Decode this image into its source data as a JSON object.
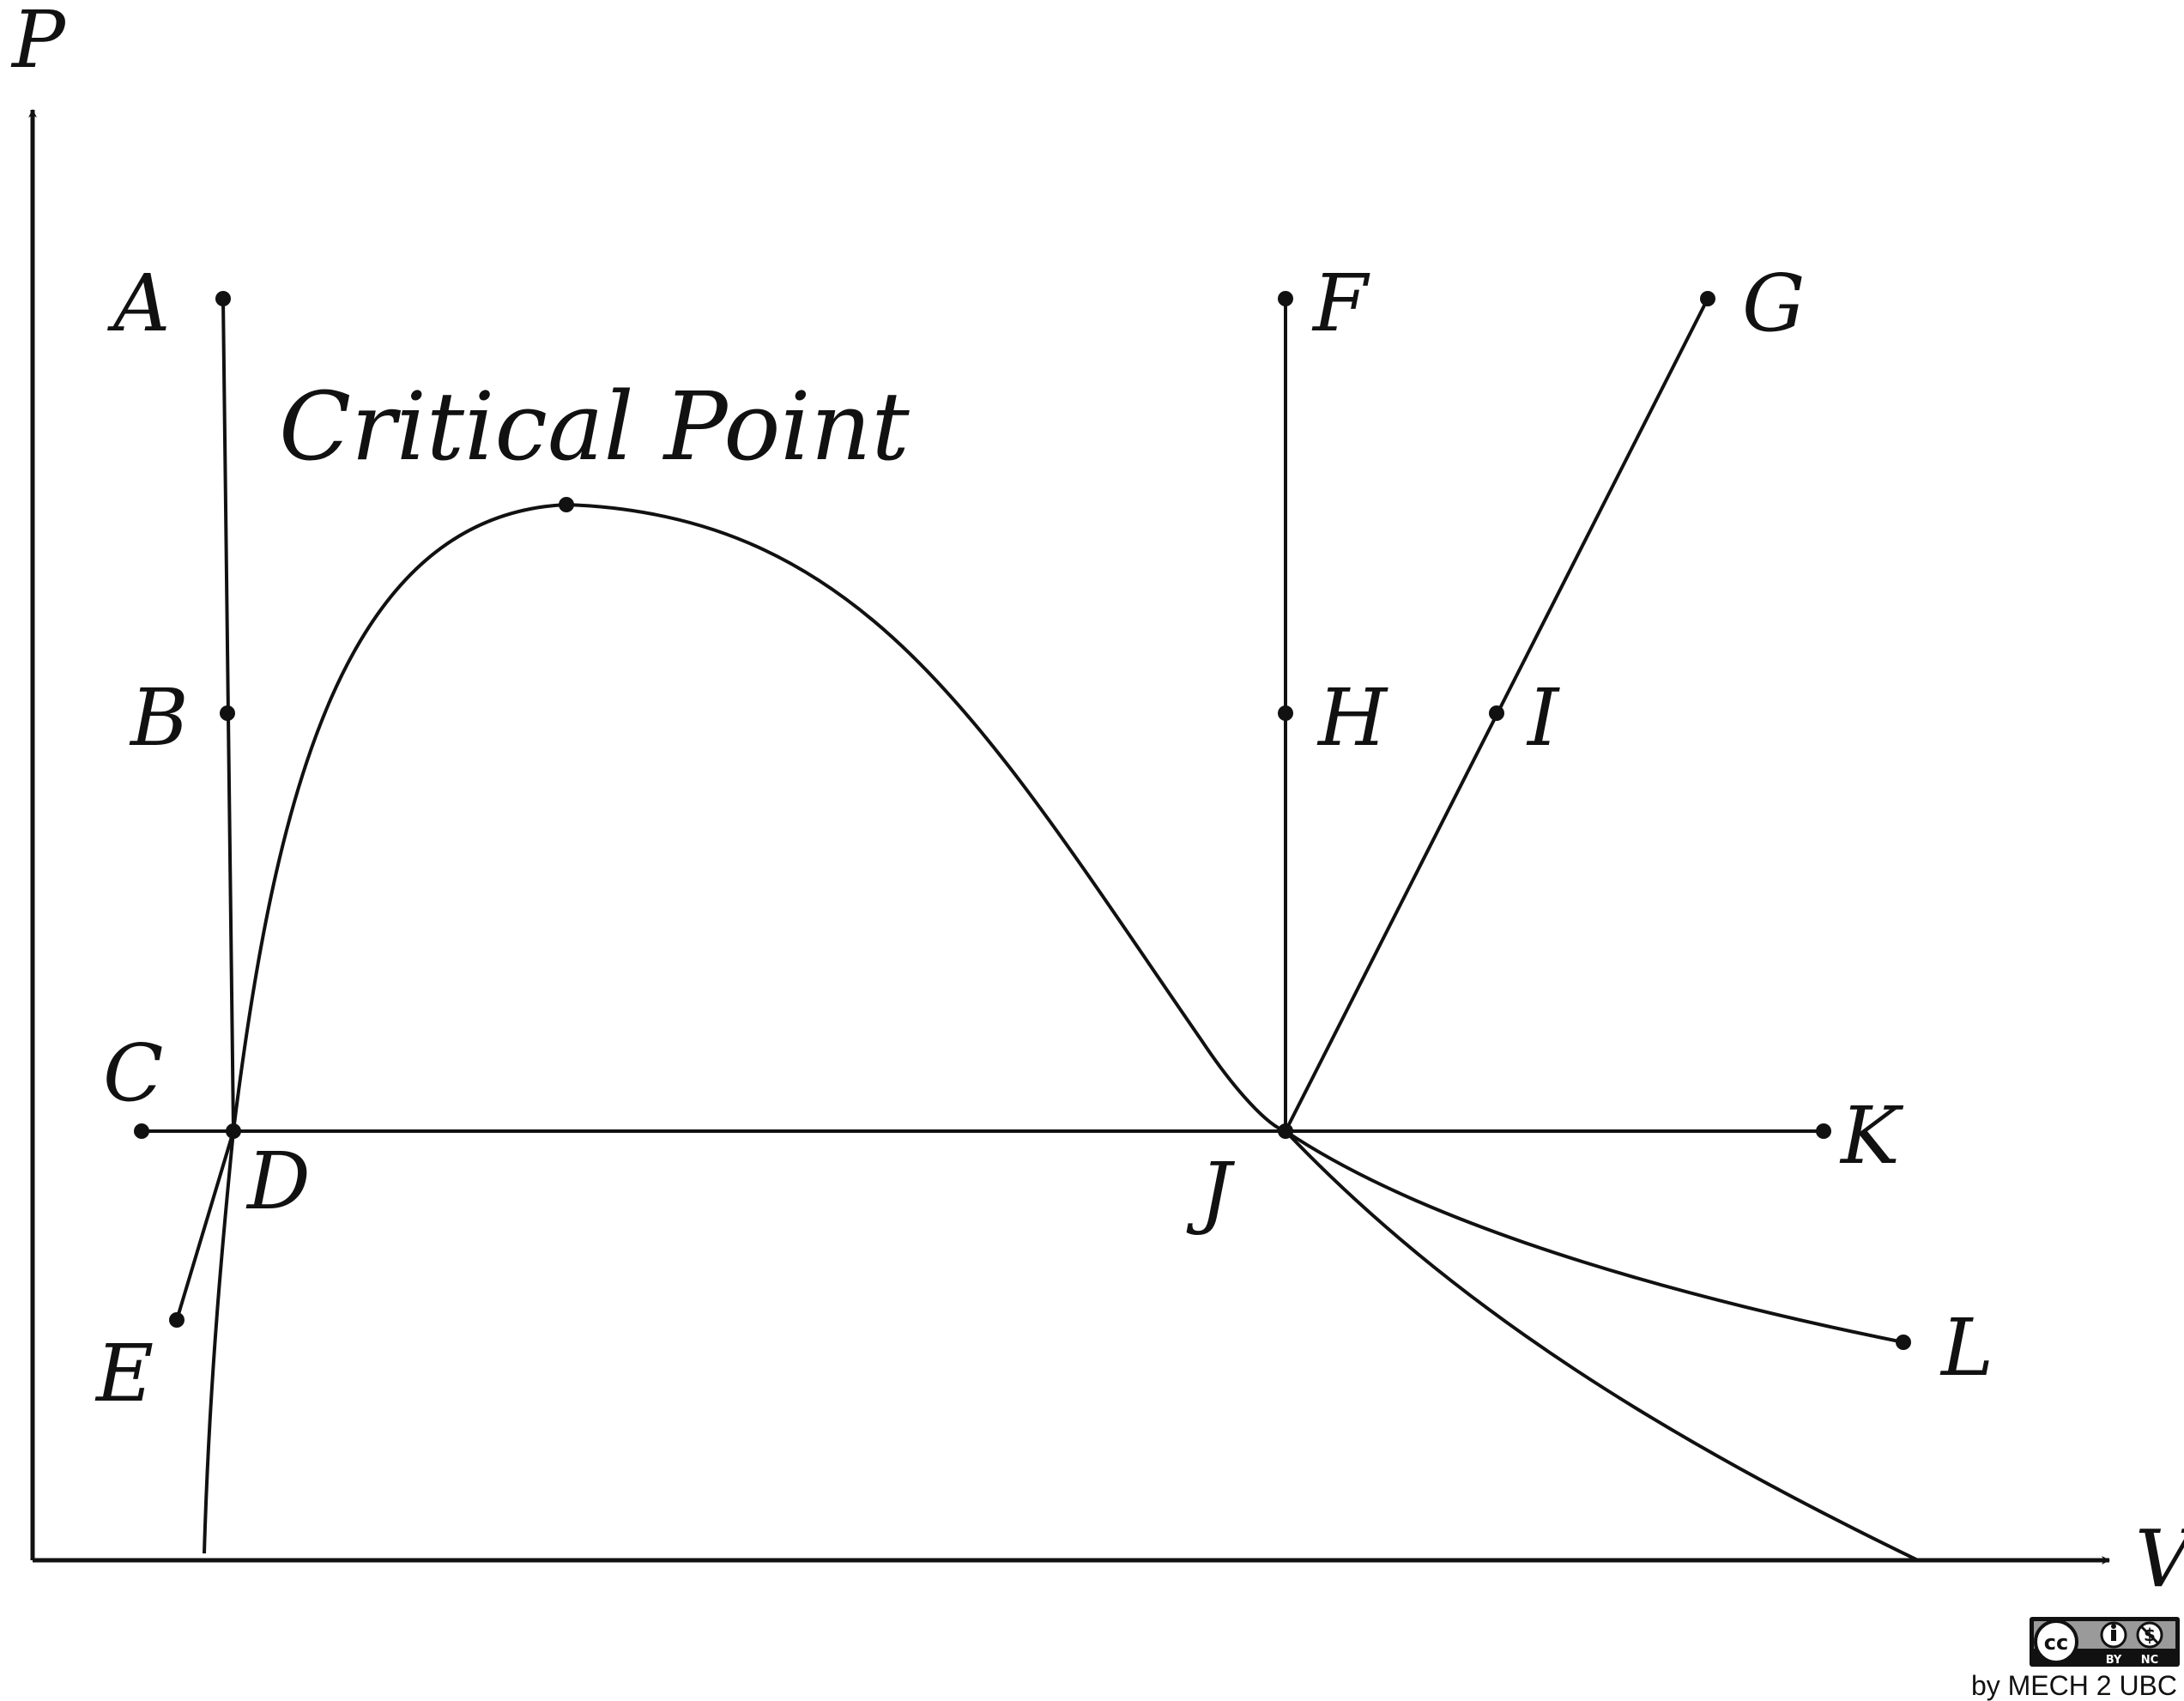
{
  "axes": {
    "y_label": "P",
    "x_label": "V"
  },
  "annotation": {
    "critical_point": "Critical Point"
  },
  "points": {
    "A": "A",
    "B": "B",
    "C": "C",
    "D": "D",
    "E": "E",
    "F": "F",
    "G": "G",
    "H": "H",
    "I": "I",
    "J": "J",
    "K": "K",
    "L": "L"
  },
  "license": {
    "cc": "cc",
    "by": "BY",
    "nc": "NC",
    "credit": "by MECH 2 UBC"
  }
}
